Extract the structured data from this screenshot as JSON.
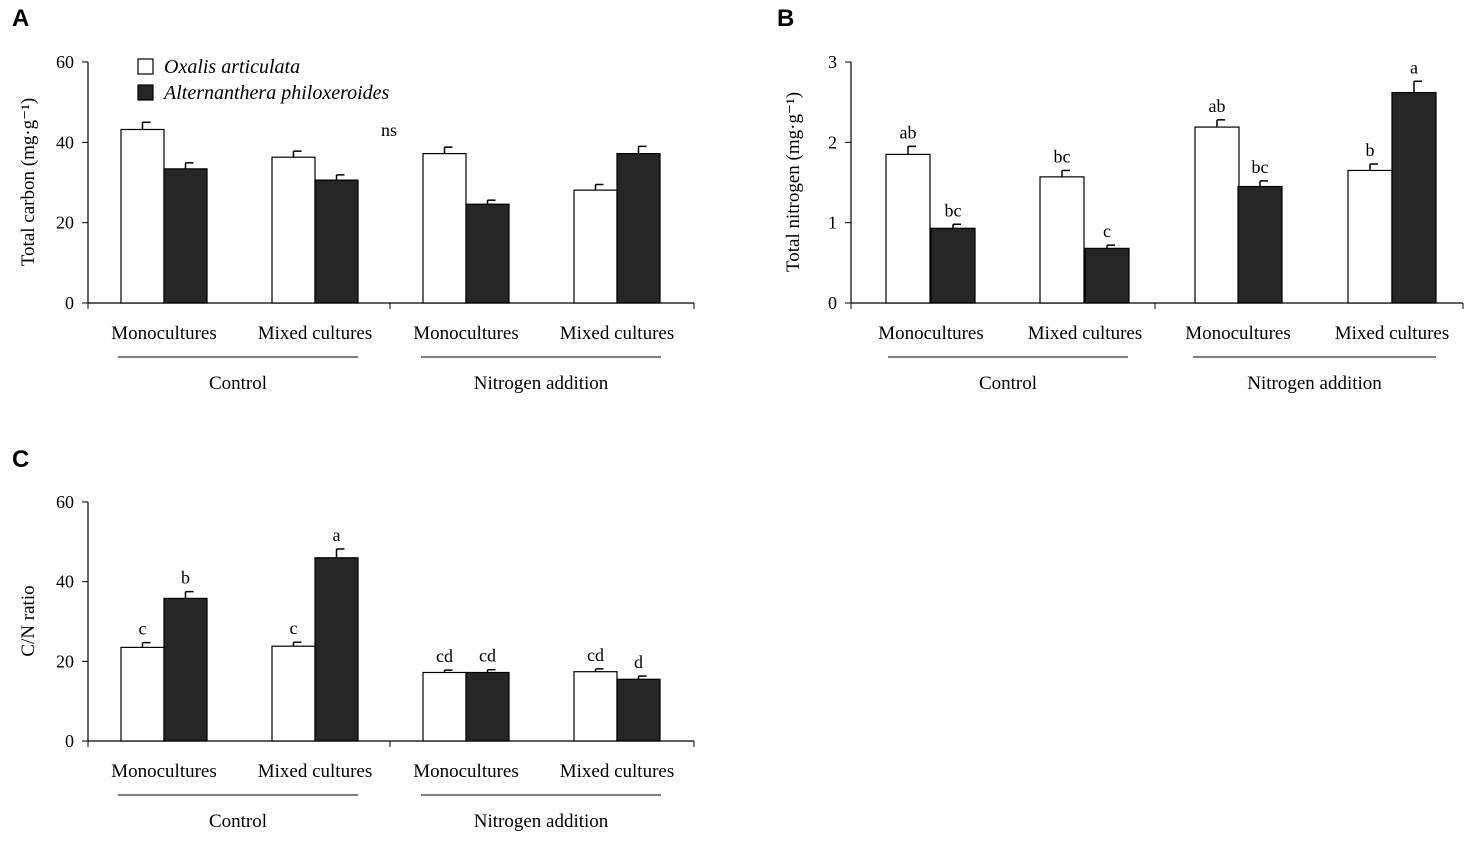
{
  "chart_data": [
    {
      "panel": "A",
      "type": "bar",
      "ylabel": "Total carbon (mg·g⁻¹)",
      "ylim": [
        0,
        60
      ],
      "yticks": [
        0,
        20,
        40,
        60
      ],
      "categories": [
        "Monocultures",
        "Mixed cultures",
        "Monocultures",
        "Mixed cultures"
      ],
      "groups": [
        "Control",
        "Nitrogen addition"
      ],
      "annotation": "ns",
      "legend": {
        "position": "top-left",
        "entries": [
          "Oxalis articulata",
          "Alternanthera philoxeroides"
        ]
      },
      "series": [
        {
          "name": "Oxalis articulata",
          "color": "#ffffff",
          "values": [
            43.2,
            36.3,
            37.2,
            28.1
          ],
          "errors": [
            1.8,
            1.5,
            1.6,
            1.4
          ],
          "letters": [
            "",
            "",
            "",
            ""
          ]
        },
        {
          "name": "Alternanthera philoxeroides",
          "color": "#262626",
          "values": [
            33.4,
            30.6,
            24.6,
            37.2
          ],
          "errors": [
            1.5,
            1.3,
            1.0,
            1.8
          ],
          "letters": [
            "",
            "",
            "",
            ""
          ]
        }
      ]
    },
    {
      "panel": "B",
      "type": "bar",
      "ylabel": "Total nitrogen (mg·g⁻¹)",
      "ylim": [
        0,
        3
      ],
      "yticks": [
        0,
        1,
        2,
        3
      ],
      "categories": [
        "Monocultures",
        "Mixed cultures",
        "Monocultures",
        "Mixed cultures"
      ],
      "groups": [
        "Control",
        "Nitrogen addition"
      ],
      "series": [
        {
          "name": "Oxalis articulata",
          "color": "#ffffff",
          "values": [
            1.85,
            1.57,
            2.19,
            1.65
          ],
          "errors": [
            0.1,
            0.08,
            0.09,
            0.08
          ],
          "letters": [
            "ab",
            "bc",
            "ab",
            "b"
          ]
        },
        {
          "name": "Alternanthera philoxeroides",
          "color": "#262626",
          "values": [
            0.93,
            0.68,
            1.45,
            2.62
          ],
          "errors": [
            0.05,
            0.04,
            0.07,
            0.14
          ],
          "letters": [
            "bc",
            "c",
            "bc",
            "a"
          ]
        }
      ]
    },
    {
      "panel": "C",
      "type": "bar",
      "ylabel": "C/N ratio",
      "ylim": [
        0,
        60
      ],
      "yticks": [
        0,
        20,
        40,
        60
      ],
      "categories": [
        "Monocultures",
        "Mixed cultures",
        "Monocultures",
        "Mixed cultures"
      ],
      "groups": [
        "Control",
        "Nitrogen addition"
      ],
      "series": [
        {
          "name": "Oxalis articulata",
          "color": "#ffffff",
          "values": [
            23.5,
            23.8,
            17.2,
            17.4
          ],
          "errors": [
            1.2,
            1.0,
            0.6,
            0.7
          ],
          "letters": [
            "c",
            "c",
            "cd",
            "cd"
          ]
        },
        {
          "name": "Alternanthera philoxeroides",
          "color": "#262626",
          "values": [
            35.8,
            46.0,
            17.2,
            15.5
          ],
          "errors": [
            1.7,
            2.2,
            0.7,
            0.8
          ],
          "letters": [
            "b",
            "a",
            "cd",
            "d"
          ]
        }
      ]
    }
  ]
}
